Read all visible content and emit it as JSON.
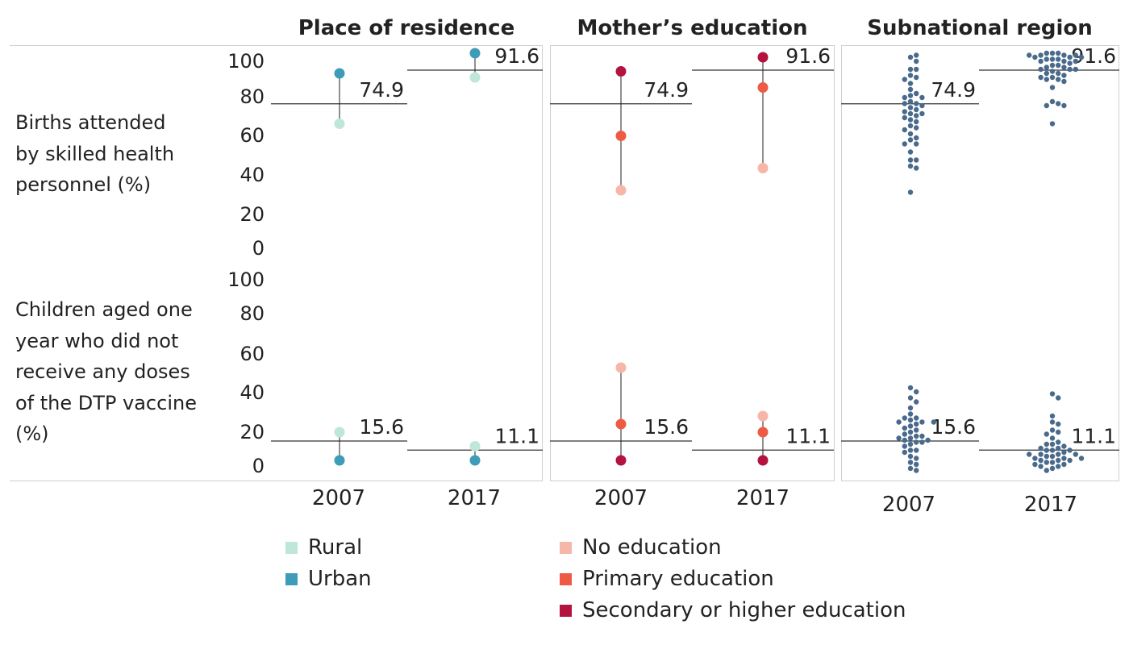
{
  "columns": [
    "Place of residence",
    "Mother’s education",
    "Subnational region"
  ],
  "rows": [
    "Births attended\nby skilled health\npersonnel (%)",
    "Children aged one\nyear who did not\nreceive any doses\nof the DTP vaccine\n(%)"
  ],
  "yticks": [
    "100",
    "80",
    "60",
    "40",
    "20",
    "0"
  ],
  "years": [
    "2007",
    "2017"
  ],
  "colors": {
    "rural": "#bfe6da",
    "urban": "#3e9cb8",
    "no_education": "#f6b6a8",
    "primary": "#ef5a45",
    "secondary": "#b3133e",
    "region": "#4a6a8c",
    "line": "#333333"
  },
  "legend": {
    "residence": [
      {
        "label": "Rural",
        "color": "#bfe6da"
      },
      {
        "label": "Urban",
        "color": "#3e9cb8"
      }
    ],
    "education": [
      {
        "label": "No education",
        "color": "#f6b6a8"
      },
      {
        "label": "Primary education",
        "color": "#ef5a45"
      },
      {
        "label": "Secondary or higher education",
        "color": "#b3133e"
      }
    ]
  },
  "chart_data": {
    "type": "scatter",
    "ylim": [
      0,
      100
    ],
    "x": [
      "2007",
      "2017"
    ],
    "national": {
      "births": [
        "74.9",
        "91.6"
      ],
      "dtp": [
        "15.6",
        "11.1"
      ]
    },
    "residence": {
      "births": {
        "Rural": [
          65,
          88
        ],
        "Urban": [
          90,
          100
        ]
      },
      "dtp": {
        "Rural": [
          20,
          13
        ],
        "Urban": [
          6,
          6
        ]
      }
    },
    "education": {
      "births": {
        "No education": [
          32,
          43
        ],
        "Primary education": [
          59,
          83
        ],
        "Secondary or higher education": [
          91,
          98
        ]
      },
      "dtp": {
        "No education": [
          52,
          28
        ],
        "Primary education": [
          24,
          20
        ],
        "Secondary or higher education": [
          6,
          6
        ]
      }
    },
    "regions": {
      "births": {
        "2007": [
          98,
          99,
          96,
          92,
          92,
          89,
          88,
          87,
          85,
          82,
          80,
          79,
          78,
          78,
          76,
          75,
          75,
          74,
          73,
          72,
          71,
          70,
          70,
          69,
          68,
          67,
          66,
          64,
          63,
          62,
          60,
          58,
          57,
          55,
          55,
          51,
          47,
          47,
          44,
          43,
          31
        ],
        "2017": [
          100,
          100,
          100,
          99,
          99,
          99,
          99,
          98,
          98,
          98,
          97,
          97,
          97,
          96,
          96,
          96,
          95,
          94,
          94,
          93,
          93,
          92,
          92,
          92,
          91,
          90,
          90,
          89,
          88,
          88,
          87,
          87,
          86,
          83,
          76,
          75,
          74,
          74,
          65
        ]
      },
      "dtp": {
        "2007": [
          42,
          40,
          37,
          35,
          32,
          29,
          27,
          27,
          26,
          25,
          25,
          25,
          24,
          23,
          22,
          21,
          20,
          19,
          18,
          18,
          17,
          17,
          16,
          16,
          15,
          15,
          14,
          13,
          11,
          11,
          10,
          8,
          7,
          5,
          4,
          2,
          1
        ],
        "2017": [
          39,
          37,
          28,
          25,
          24,
          21,
          20,
          19,
          17,
          15,
          14,
          14,
          13,
          12,
          12,
          11,
          11,
          11,
          10,
          9,
          9,
          9,
          9,
          8,
          8,
          7,
          7,
          7,
          6,
          6,
          6,
          5,
          5,
          4,
          4,
          3,
          3,
          2,
          1
        ]
      }
    }
  }
}
